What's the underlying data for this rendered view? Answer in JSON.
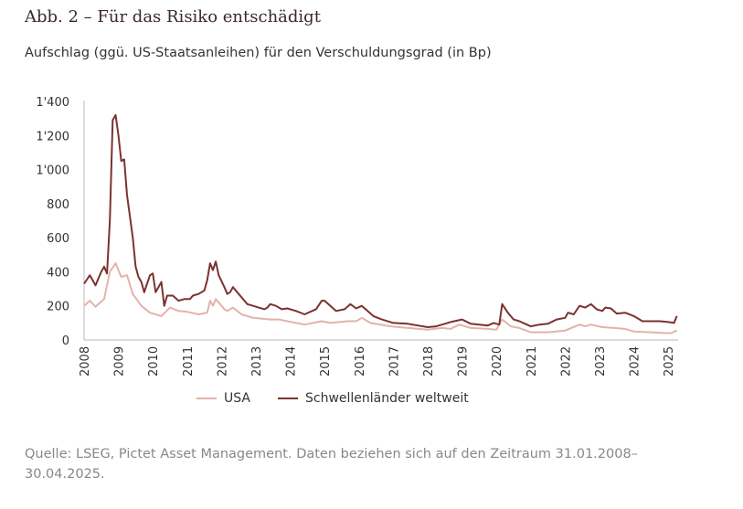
{
  "title": "Abb. 2 – Für das Risiko entschädigt",
  "subtitle": "Aufschlag (ggü. US-Staatsanleihen) für den Verschuldungsgrad (in Bp)",
  "source": "Quelle: LSEG, Pictet Asset Management. Daten beziehen sich auf den Zeitraum 31.01.2008–30.04.2025.",
  "chart_data": {
    "type": "line",
    "xlabel": "",
    "ylabel": "",
    "ylim": [
      0,
      1400
    ],
    "yticks": [
      "0",
      "200",
      "400",
      "600",
      "800",
      "1'000",
      "1'200",
      "1'400"
    ],
    "xticks": [
      "2008",
      "2009",
      "2010",
      "2011",
      "2012",
      "2013",
      "2014",
      "2015",
      "2016",
      "2017",
      "2018",
      "2019",
      "2020",
      "2021",
      "2022",
      "2023",
      "2024",
      "2025"
    ],
    "grid": false,
    "legend": "bottom",
    "series": [
      {
        "name": "USA",
        "color": "#e2b3aa",
        "points": [
          [
            "2008-01",
            200
          ],
          [
            "2008-03",
            230
          ],
          [
            "2008-05",
            195
          ],
          [
            "2008-08",
            240
          ],
          [
            "2008-10",
            400
          ],
          [
            "2008-12",
            450
          ],
          [
            "2009-02",
            370
          ],
          [
            "2009-04",
            380
          ],
          [
            "2009-06",
            270
          ],
          [
            "2009-09",
            200
          ],
          [
            "2009-12",
            160
          ],
          [
            "2010-04",
            140
          ],
          [
            "2010-07",
            190
          ],
          [
            "2010-10",
            170
          ],
          [
            "2011-01",
            165
          ],
          [
            "2011-05",
            150
          ],
          [
            "2011-08",
            160
          ],
          [
            "2011-09",
            230
          ],
          [
            "2011-10",
            200
          ],
          [
            "2011-11",
            240
          ],
          [
            "2012-02",
            180
          ],
          [
            "2012-03",
            170
          ],
          [
            "2012-05",
            190
          ],
          [
            "2012-08",
            150
          ],
          [
            "2012-12",
            130
          ],
          [
            "2013-06",
            120
          ],
          [
            "2013-09",
            120
          ],
          [
            "2013-12",
            110
          ],
          [
            "2014-06",
            90
          ],
          [
            "2014-12",
            110
          ],
          [
            "2015-03",
            100
          ],
          [
            "2015-09",
            110
          ],
          [
            "2015-12",
            110
          ],
          [
            "2016-02",
            130
          ],
          [
            "2016-05",
            100
          ],
          [
            "2016-12",
            80
          ],
          [
            "2017-06",
            70
          ],
          [
            "2018-01",
            60
          ],
          [
            "2018-06",
            70
          ],
          [
            "2018-09",
            65
          ],
          [
            "2018-12",
            90
          ],
          [
            "2019-04",
            70
          ],
          [
            "2019-10",
            65
          ],
          [
            "2020-01",
            60
          ],
          [
            "2020-03",
            120
          ],
          [
            "2020-06",
            80
          ],
          [
            "2020-09",
            70
          ],
          [
            "2021-01",
            45
          ],
          [
            "2021-07",
            45
          ],
          [
            "2022-01",
            55
          ],
          [
            "2022-06",
            90
          ],
          [
            "2022-08",
            80
          ],
          [
            "2022-10",
            90
          ],
          [
            "2023-02",
            75
          ],
          [
            "2023-06",
            70
          ],
          [
            "2023-10",
            65
          ],
          [
            "2024-01",
            50
          ],
          [
            "2024-07",
            45
          ],
          [
            "2024-12",
            40
          ],
          [
            "2025-02",
            40
          ],
          [
            "2025-04",
            55
          ]
        ]
      },
      {
        "name": "Schwellenländer weltweit",
        "color": "#7a3330",
        "points": [
          [
            "2008-01",
            330
          ],
          [
            "2008-03",
            380
          ],
          [
            "2008-05",
            320
          ],
          [
            "2008-07",
            400
          ],
          [
            "2008-08",
            430
          ],
          [
            "2008-09",
            390
          ],
          [
            "2008-10",
            700
          ],
          [
            "2008-11",
            1290
          ],
          [
            "2008-12",
            1320
          ],
          [
            "2009-01",
            1200
          ],
          [
            "2009-02",
            1050
          ],
          [
            "2009-03",
            1060
          ],
          [
            "2009-04",
            850
          ],
          [
            "2009-06",
            600
          ],
          [
            "2009-07",
            430
          ],
          [
            "2009-08",
            370
          ],
          [
            "2009-09",
            340
          ],
          [
            "2009-10",
            280
          ],
          [
            "2009-11",
            330
          ],
          [
            "2009-12",
            380
          ],
          [
            "2010-01",
            390
          ],
          [
            "2010-02",
            280
          ],
          [
            "2010-04",
            340
          ],
          [
            "2010-05",
            200
          ],
          [
            "2010-06",
            260
          ],
          [
            "2010-08",
            260
          ],
          [
            "2010-10",
            230
          ],
          [
            "2010-12",
            240
          ],
          [
            "2011-02",
            240
          ],
          [
            "2011-03",
            260
          ],
          [
            "2011-05",
            270
          ],
          [
            "2011-07",
            290
          ],
          [
            "2011-08",
            350
          ],
          [
            "2011-09",
            450
          ],
          [
            "2011-10",
            410
          ],
          [
            "2011-11",
            460
          ],
          [
            "2011-12",
            380
          ],
          [
            "2012-02",
            310
          ],
          [
            "2012-03",
            270
          ],
          [
            "2012-04",
            280
          ],
          [
            "2012-05",
            310
          ],
          [
            "2012-07",
            270
          ],
          [
            "2012-09",
            230
          ],
          [
            "2012-10",
            210
          ],
          [
            "2012-12",
            200
          ],
          [
            "2013-02",
            190
          ],
          [
            "2013-04",
            180
          ],
          [
            "2013-05",
            190
          ],
          [
            "2013-06",
            210
          ],
          [
            "2013-08",
            200
          ],
          [
            "2013-10",
            180
          ],
          [
            "2013-12",
            185
          ],
          [
            "2014-03",
            170
          ],
          [
            "2014-06",
            150
          ],
          [
            "2014-08",
            165
          ],
          [
            "2014-10",
            180
          ],
          [
            "2014-12",
            230
          ],
          [
            "2015-01",
            230
          ],
          [
            "2015-03",
            200
          ],
          [
            "2015-05",
            170
          ],
          [
            "2015-08",
            180
          ],
          [
            "2015-10",
            210
          ],
          [
            "2015-12",
            185
          ],
          [
            "2016-02",
            200
          ],
          [
            "2016-04",
            170
          ],
          [
            "2016-06",
            140
          ],
          [
            "2016-09",
            120
          ],
          [
            "2017-01",
            100
          ],
          [
            "2017-06",
            95
          ],
          [
            "2018-01",
            75
          ],
          [
            "2018-04",
            80
          ],
          [
            "2018-07",
            95
          ],
          [
            "2018-09",
            105
          ],
          [
            "2019-01",
            120
          ],
          [
            "2019-04",
            95
          ],
          [
            "2019-07",
            90
          ],
          [
            "2019-10",
            85
          ],
          [
            "2019-12",
            100
          ],
          [
            "2020-02",
            90
          ],
          [
            "2020-03",
            210
          ],
          [
            "2020-05",
            160
          ],
          [
            "2020-07",
            120
          ],
          [
            "2020-09",
            110
          ],
          [
            "2020-11",
            95
          ],
          [
            "2021-01",
            80
          ],
          [
            "2021-04",
            90
          ],
          [
            "2021-07",
            95
          ],
          [
            "2021-10",
            120
          ],
          [
            "2022-01",
            130
          ],
          [
            "2022-02",
            160
          ],
          [
            "2022-04",
            150
          ],
          [
            "2022-06",
            200
          ],
          [
            "2022-08",
            190
          ],
          [
            "2022-10",
            210
          ],
          [
            "2022-12",
            180
          ],
          [
            "2023-02",
            170
          ],
          [
            "2023-03",
            190
          ],
          [
            "2023-05",
            185
          ],
          [
            "2023-07",
            155
          ],
          [
            "2023-10",
            160
          ],
          [
            "2024-01",
            140
          ],
          [
            "2024-04",
            110
          ],
          [
            "2024-07",
            110
          ],
          [
            "2024-10",
            110
          ],
          [
            "2025-01",
            105
          ],
          [
            "2025-03",
            100
          ],
          [
            "2025-04",
            140
          ]
        ]
      }
    ]
  }
}
